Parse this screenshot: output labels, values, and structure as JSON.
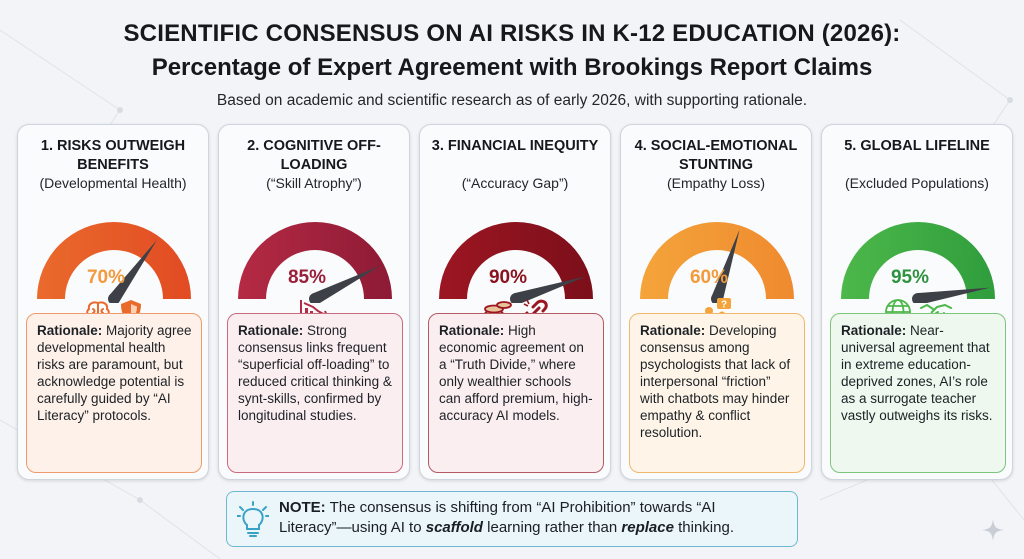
{
  "header": {
    "title_line1": "SCIENTIFIC CONSENSUS ON AI RISKS IN K-12 EDUCATION (2026):",
    "title_line2": "Percentage of Expert Agreement with Brookings Report Claims",
    "subtitle": "Based on academic and scientific research as of early 2026, with supporting rationale."
  },
  "chart_data": {
    "type": "gauge",
    "title": "SCIENTIFIC CONSENSUS ON AI RISKS IN K-12 EDUCATION (2026): Percentage of Expert Agreement with Brookings Report Claims",
    "unit": "%",
    "range": [
      0,
      100
    ],
    "items": [
      {
        "title": "1. RISKS OUTWEIGH BENEFITS",
        "subtitle": "(Developmental Health)",
        "value": 70,
        "label": "70%",
        "color": "#ea6a2c",
        "color_dark": "#e14b23",
        "text_color": "#f39a3d",
        "box_border": "#ee9a6a",
        "box_bg": "#fdf1e9",
        "icons": [
          "brain-icon",
          "shield-icon"
        ],
        "rationale_head": "Rationale:",
        "rationale": " Majority agree developmental health risks are paramount, but acknowledge potential is carefully guided by “AI Literacy” protocols."
      },
      {
        "title": "2. COGNITIVE OFF-LOADING",
        "subtitle": "(“Skill Atrophy”)",
        "value": 85,
        "label": "85%",
        "color": "#b52a44",
        "color_dark": "#8d1a35",
        "text_color": "#9a1f3a",
        "box_border": "#c96b7e",
        "box_bg": "#fbeef1",
        "icons": [
          "declining-chart-icon"
        ],
        "rationale_head": "Rationale:",
        "rationale": " Strong consensus links frequent “superficial off-loading” to reduced critical thinking & synt-skills, confirmed by longitudinal studies."
      },
      {
        "title": "3. FINANCIAL INEQUITY",
        "subtitle": "(“Accuracy Gap”)",
        "value": 90,
        "label": "90%",
        "color": "#9c1622",
        "color_dark": "#7b0f1a",
        "text_color": "#8a1320",
        "box_border": "#b45a63",
        "box_bg": "#faeef0",
        "icons": [
          "coins-icon",
          "broken-link-icon"
        ],
        "rationale_head": "Rationale:",
        "rationale": " High economic agreement on a “Truth Divide,” where only wealthier schools can afford premium, high-accuracy AI models."
      },
      {
        "title": "4. SOCIAL-EMOTIONAL STUNTING",
        "subtitle": "(Empathy Loss)",
        "value": 60,
        "label": "60%",
        "color": "#f4a43a",
        "color_dark": "#ef8a2f",
        "text_color": "#f29a3c",
        "box_border": "#f1b86a",
        "box_bg": "#fef5e8",
        "icons": [
          "people-question-icon"
        ],
        "rationale_head": "Rationale:",
        "rationale": " Developing consensus among psychologists that lack of interpersonal “friction” with chatbots may hinder empathy & conflict resolution."
      },
      {
        "title": "5. GLOBAL LIFELINE",
        "subtitle": "(Excluded Populations)",
        "value": 95,
        "label": "95%",
        "color": "#4cb84a",
        "color_dark": "#2f9d3c",
        "text_color": "#2f9240",
        "box_border": "#7cc67c",
        "box_bg": "#eef8ee",
        "icons": [
          "globe-icon",
          "handshake-icon"
        ],
        "rationale_head": "Rationale:",
        "rationale": " Near-universal agreement that in extreme education-deprived zones, AI’s role as a surrogate teacher vastly outweighs its risks."
      }
    ]
  },
  "note": {
    "head": "NOTE:",
    "text_a": " The consensus is shifting from “AI Prohibition” towards “AI Literacy”—using AI to ",
    "em1": "scaffold",
    "text_b": " learning rather than ",
    "em2": "replace",
    "text_c": " thinking.",
    "icon": "lightbulb-icon"
  }
}
